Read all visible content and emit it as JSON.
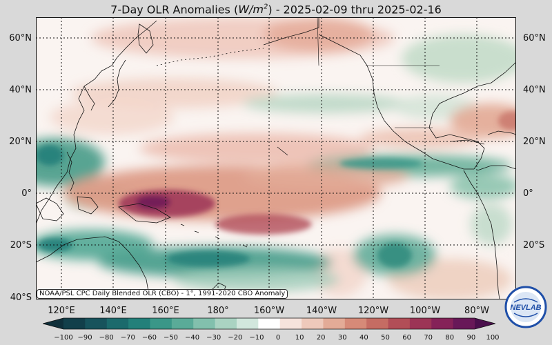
{
  "title": {
    "prefix": "7-Day OLR Anomalies (",
    "unit_base": "W/m",
    "unit_exp": "2",
    "suffix": ") - 2025-02-09 thru 2025-02-16"
  },
  "lat_labels": [
    "60°N",
    "40°N",
    "20°N",
    "0°",
    "20°S",
    "40°S"
  ],
  "lon_labels": [
    "120°E",
    "140°E",
    "160°E",
    "180°",
    "160°W",
    "140°W",
    "120°W",
    "100°W",
    "80°W"
  ],
  "source_note": "NOAA/PSL CPC Daily Blended OLR (CBO) - 1°, 1991-2020 CBO Anomaly",
  "colorbar": {
    "ticks": [
      "−100",
      "−90",
      "−80",
      "−70",
      "−60",
      "−50",
      "−40",
      "−30",
      "−20",
      "−10",
      "0",
      "10",
      "20",
      "30",
      "40",
      "50",
      "60",
      "70",
      "80",
      "90",
      "100"
    ],
    "colors": [
      "#0f2f3a",
      "#123f4a",
      "#17535c",
      "#1b6a6c",
      "#23807a",
      "#3a9788",
      "#5aab98",
      "#82c0ad",
      "#aad3c2",
      "#d2e7dd",
      "#ffffff",
      "#f6e3dc",
      "#eec9bb",
      "#e3ab97",
      "#d68a78",
      "#c56c63",
      "#b24e57",
      "#9c3456",
      "#852258",
      "#681858",
      "#4a0f4c"
    ]
  },
  "logo": {
    "text": "NEVLAB",
    "colors": {
      "ring": "#1f4fa8",
      "fill": "#dbe6f5"
    }
  },
  "colors": {
    "positive": "#b94a55",
    "negative": "#2d8a78",
    "background": "#d9d9d9"
  }
}
